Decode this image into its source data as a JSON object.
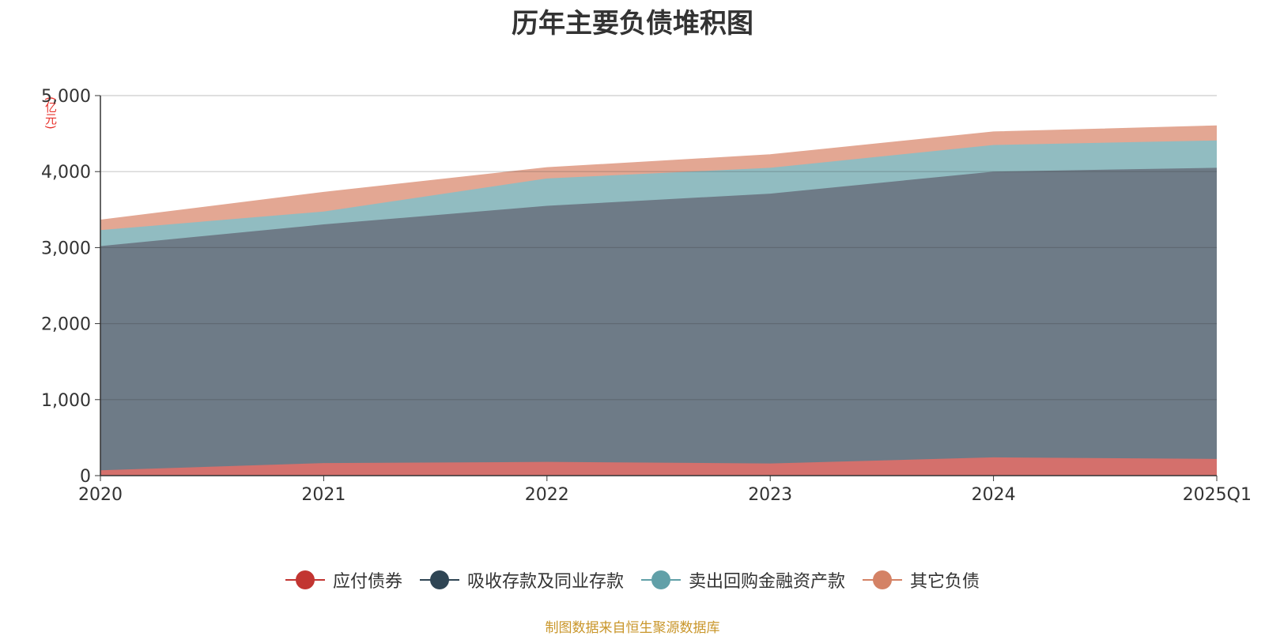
{
  "title": "历年主要负债堆积图",
  "unit": "(亿元)",
  "source_note": "制图数据来自恒生聚源数据库",
  "chart_data": {
    "type": "area",
    "stacked": true,
    "title": "历年主要负债堆积图",
    "ylabel": "(亿元)",
    "xlabel": "",
    "categories": [
      "2020",
      "2021",
      "2022",
      "2023",
      "2024",
      "2025Q1"
    ],
    "ylim": [
      0,
      5000
    ],
    "yticks": [
      0,
      1000,
      2000,
      3000,
      4000,
      5000
    ],
    "ytick_labels": [
      "0",
      "1,000",
      "2,000",
      "3,000",
      "4,000",
      "5,000"
    ],
    "grid": true,
    "legend_position": "bottom",
    "series": [
      {
        "name": "应付债券",
        "values": [
          70,
          165,
          180,
          160,
          240,
          220
        ],
        "color": "#c23531",
        "fill": "#d4706c"
      },
      {
        "name": "吸收存款及同业存款",
        "values": [
          2950,
          3140,
          3370,
          3550,
          3760,
          3830
        ],
        "color": "#2f4554",
        "fill": "#6e7b87"
      },
      {
        "name": "卖出回购金融资产款",
        "values": [
          210,
          170,
          360,
          340,
          350,
          360
        ],
        "color": "#61a0a8",
        "fill": "#91bcc1"
      },
      {
        "name": "其它负债",
        "values": [
          130,
          250,
          140,
          170,
          170,
          190
        ],
        "color": "#d48265",
        "fill": "#e3a793"
      }
    ]
  }
}
